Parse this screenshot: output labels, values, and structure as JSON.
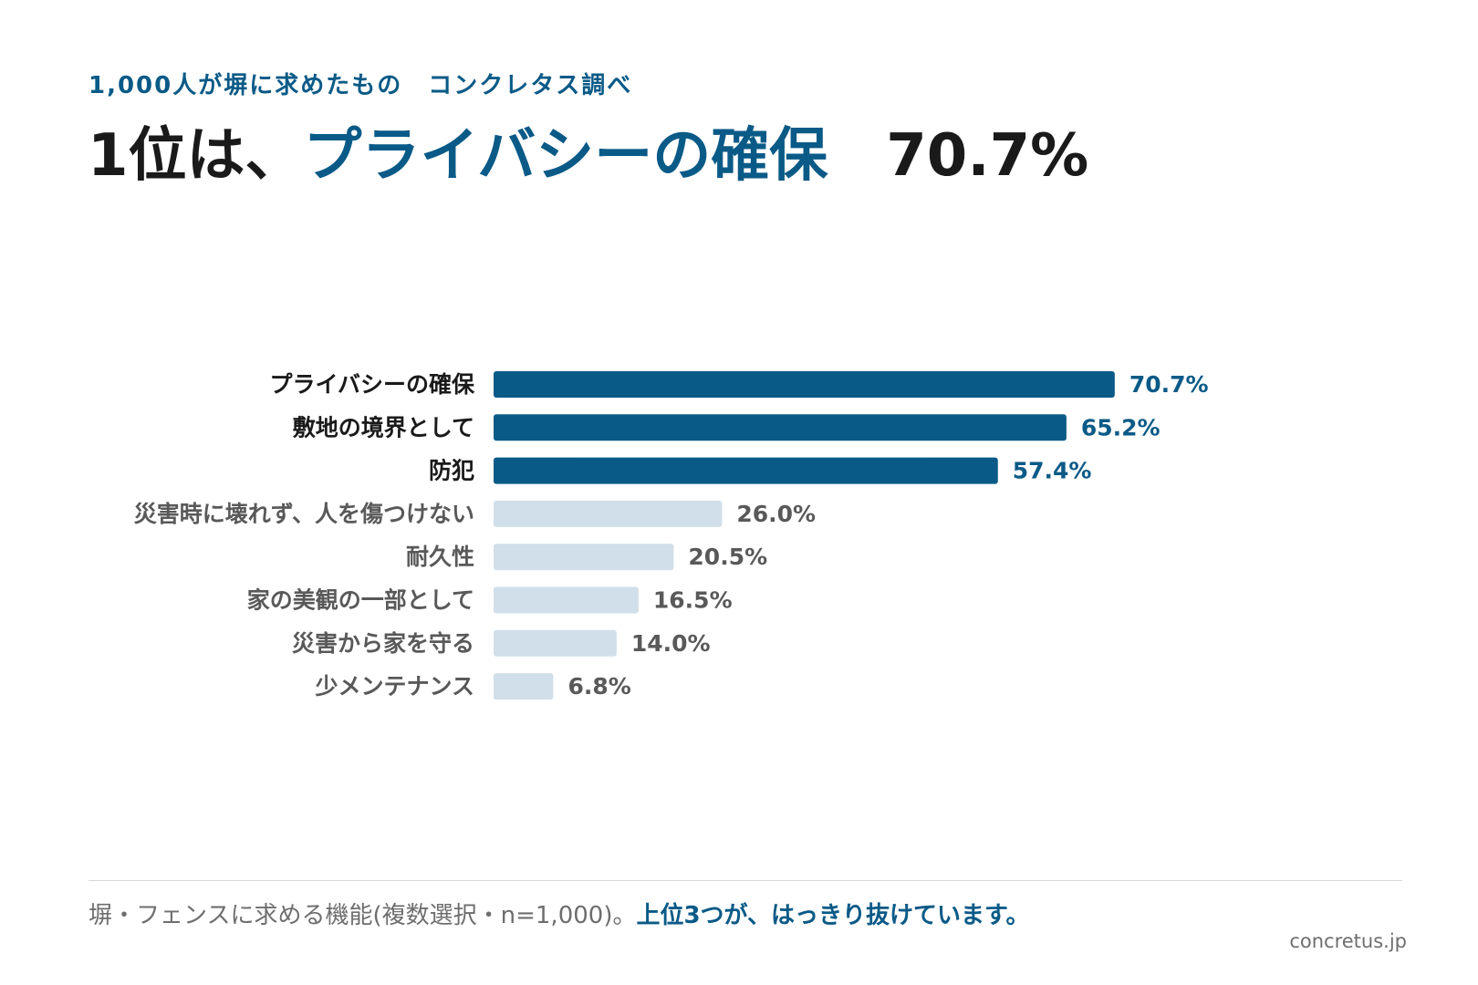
{
  "header": {
    "subtitle": "1,000人が塀に求めたもの　コンクレタス調べ",
    "headline_prefix": "1位は、",
    "headline_highlight": "プライバシーの確保",
    "headline_value": "70.7%"
  },
  "chart_data": {
    "type": "bar",
    "orientation": "horizontal",
    "categories": [
      "プライバシーの確保",
      "敷地の境界として",
      "防犯",
      "災害時に壊れず、人を傷つけない",
      "耐久性",
      "家の美観の一部として",
      "災害から家を守る",
      "少メンテナンス"
    ],
    "values": [
      70.7,
      65.2,
      57.4,
      26.0,
      20.5,
      16.5,
      14.0,
      6.8
    ],
    "value_labels": [
      "70.7%",
      "65.2%",
      "57.4%",
      "26.0%",
      "20.5%",
      "16.5%",
      "14.0%",
      "6.8%"
    ],
    "highlighted_top_n": 3,
    "unit": "%",
    "xlim": [
      0,
      100
    ],
    "grid": false,
    "legend": "none"
  },
  "footer": {
    "note": "塀・フェンスに求める機能(複数選択・n=1,000)。",
    "note_emphasis": "上位3つが、はっきり抜けています。",
    "source": "concretus.jp"
  },
  "colors": {
    "accent": "#0a5a87",
    "highlight_bar": "#0a5a87",
    "muted_bar": "#d0dfe9",
    "highlight_label": "#1a1a1a",
    "muted_label": "#595959",
    "muted_value": "#595959",
    "headline": "#1a1a1a",
    "footnote": "#6e6e6e"
  }
}
